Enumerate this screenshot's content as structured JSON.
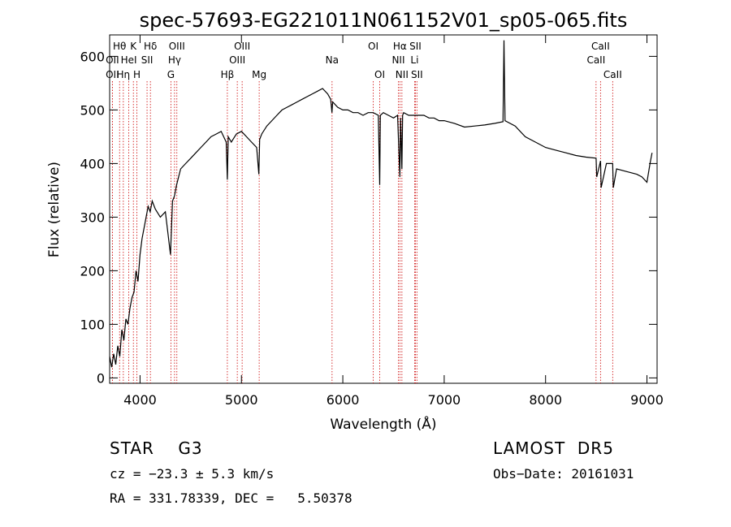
{
  "chart_data": {
    "type": "line",
    "title": "spec-57693-EG221011N061152V01_sp05-065.fits",
    "xlabel": "Wavelength (Å)",
    "ylabel": "Flux (relative)",
    "xlim": [
      3700,
      9100
    ],
    "ylim": [
      -10,
      640
    ],
    "x_ticks": [
      4000,
      5000,
      6000,
      7000,
      8000,
      9000
    ],
    "y_ticks": [
      0,
      100,
      200,
      300,
      400,
      500,
      600
    ],
    "grid": false,
    "line_color": "#000000",
    "marker_line_color": "#cc0000",
    "series": [
      {
        "x": [
          3700,
          3720,
          3740,
          3760,
          3780,
          3800,
          3820,
          3840,
          3860,
          3880,
          3900,
          3920,
          3940,
          3960,
          3980,
          4000,
          4020,
          4040,
          4060,
          4080,
          4100,
          4120,
          4150,
          4200,
          4250,
          4300,
          4320,
          4340,
          4360,
          4400,
          4450,
          4500,
          4550,
          4600,
          4650,
          4700,
          4750,
          4800,
          4850,
          4861,
          4870,
          4900,
          4950,
          5000,
          5050,
          5100,
          5150,
          5172,
          5180,
          5200,
          5250,
          5300,
          5350,
          5400,
          5450,
          5500,
          5550,
          5600,
          5650,
          5700,
          5750,
          5800,
          5850,
          5880,
          5893,
          5900,
          5950,
          6000,
          6050,
          6100,
          6150,
          6200,
          6250,
          6300,
          6350,
          6364,
          6370,
          6400,
          6450,
          6500,
          6540,
          6563,
          6570,
          6583,
          6590,
          6600,
          6650,
          6700,
          6750,
          6800,
          6850,
          6900,
          6950,
          7000,
          7100,
          7200,
          7300,
          7400,
          7500,
          7580,
          7590,
          7600,
          7700,
          7800,
          7900,
          8000,
          8100,
          8200,
          8300,
          8400,
          8498,
          8505,
          8542,
          8548,
          8600,
          8662,
          8668,
          8700,
          8800,
          8900,
          8950,
          9000,
          9030,
          9050
        ],
        "y": [
          40,
          20,
          45,
          25,
          60,
          40,
          90,
          70,
          110,
          100,
          130,
          150,
          160,
          200,
          180,
          230,
          260,
          280,
          300,
          320,
          310,
          330,
          315,
          300,
          310,
          230,
          330,
          340,
          360,
          390,
          400,
          410,
          420,
          430,
          440,
          450,
          455,
          460,
          440,
          370,
          450,
          440,
          455,
          460,
          450,
          440,
          430,
          380,
          445,
          455,
          470,
          480,
          490,
          500,
          505,
          510,
          515,
          520,
          525,
          530,
          535,
          540,
          530,
          520,
          495,
          515,
          505,
          500,
          500,
          495,
          495,
          490,
          495,
          495,
          490,
          360,
          490,
          495,
          490,
          485,
          490,
          375,
          485,
          390,
          490,
          495,
          490,
          490,
          490,
          490,
          485,
          485,
          480,
          480,
          475,
          468,
          470,
          472,
          475,
          478,
          630,
          480,
          470,
          450,
          440,
          430,
          425,
          420,
          415,
          412,
          410,
          375,
          405,
          355,
          400,
          400,
          355,
          390,
          385,
          380,
          375,
          365,
          400,
          420
        ]
      }
    ],
    "line_markers": [
      {
        "label": "Hθ",
        "x": 3798,
        "row": 0
      },
      {
        "label": "OII",
        "x": 3727,
        "row": 1
      },
      {
        "label": "OII",
        "x": 3727,
        "row": 2
      },
      {
        "label": "Hη",
        "x": 3835,
        "row": 2
      },
      {
        "label": "HeI",
        "x": 3889,
        "row": 1
      },
      {
        "label": "K",
        "x": 3934,
        "row": 0
      },
      {
        "label": "H",
        "x": 3969,
        "row": 2
      },
      {
        "label": "SII",
        "x": 4069,
        "row": 1
      },
      {
        "label": "Hδ",
        "x": 4102,
        "row": 0
      },
      {
        "label": "OIII",
        "x": 4363,
        "row": 0
      },
      {
        "label": "Hγ",
        "x": 4340,
        "row": 1
      },
      {
        "label": "G",
        "x": 4304,
        "row": 2
      },
      {
        "label": "Hβ",
        "x": 4861,
        "row": 2
      },
      {
        "label": "OIII",
        "x": 4959,
        "row": 1
      },
      {
        "label": "OIII",
        "x": 5007,
        "row": 0
      },
      {
        "label": "Mg",
        "x": 5175,
        "row": 2
      },
      {
        "label": "Na",
        "x": 5894,
        "row": 1
      },
      {
        "label": "OI",
        "x": 6300,
        "row": 0
      },
      {
        "label": "OI",
        "x": 6364,
        "row": 2
      },
      {
        "label": "Hα",
        "x": 6563,
        "row": 0
      },
      {
        "label": "NII",
        "x": 6548,
        "row": 1
      },
      {
        "label": "NII",
        "x": 6583,
        "row": 2
      },
      {
        "label": "SII",
        "x": 6716,
        "row": 0
      },
      {
        "label": "Li",
        "x": 6708,
        "row": 1
      },
      {
        "label": "SII",
        "x": 6731,
        "row": 2
      },
      {
        "label": "CaII",
        "x": 8542,
        "row": 0
      },
      {
        "label": "CaII",
        "x": 8498,
        "row": 1
      },
      {
        "label": "CaII",
        "x": 8662,
        "row": 2
      }
    ]
  },
  "info": {
    "obj_type": "STAR    G3",
    "survey": "LAMOST  DR5",
    "cz": "cz = −23.3 ± 5.3 km/s",
    "obs_date": "Obs−Date: 20161031",
    "radec": "RA = 331.78339, DEC =   5.50378"
  }
}
